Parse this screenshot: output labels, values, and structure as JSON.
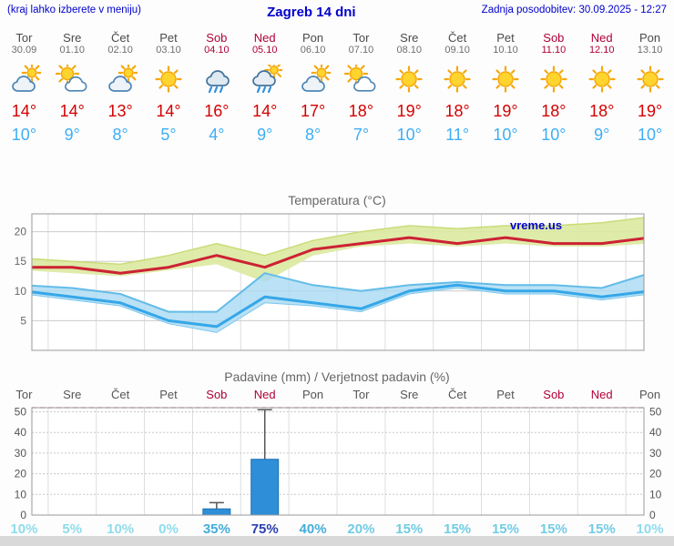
{
  "header": {
    "left_note": "(kraj lahko izberete v meniju)",
    "title": "Zagreb 14 dni",
    "updated": "Zadnja posodobitev: 30.09.2025 - 12:27"
  },
  "colors": {
    "accent_blue": "#0000cc",
    "tmax_red": "#d40000",
    "tmin_blue": "#3daef5",
    "weekend_red": "#b10036",
    "bar_blue": "#2e8fd8"
  },
  "days": [
    {
      "name": "Tor",
      "date": "30.09",
      "weekend": false,
      "icon": "mostly-cloudy",
      "tmax": "14°",
      "tmin": "10°",
      "precip_prob": "10%"
    },
    {
      "name": "Sre",
      "date": "01.10",
      "weekend": false,
      "icon": "partly-cloudy",
      "tmax": "14°",
      "tmin": "9°",
      "precip_prob": "5%"
    },
    {
      "name": "Čet",
      "date": "02.10",
      "weekend": false,
      "icon": "mostly-cloudy",
      "tmax": "13°",
      "tmin": "8°",
      "precip_prob": "10%"
    },
    {
      "name": "Pet",
      "date": "03.10",
      "weekend": false,
      "icon": "sunny",
      "tmax": "14°",
      "tmin": "5°",
      "precip_prob": "0%"
    },
    {
      "name": "Sob",
      "date": "04.10",
      "weekend": true,
      "icon": "rain",
      "tmax": "16°",
      "tmin": "4°",
      "precip_prob": "35%"
    },
    {
      "name": "Ned",
      "date": "05.10",
      "weekend": true,
      "icon": "sun-rain",
      "tmax": "14°",
      "tmin": "9°",
      "precip_prob": "75%"
    },
    {
      "name": "Pon",
      "date": "06.10",
      "weekend": false,
      "icon": "mostly-cloudy",
      "tmax": "17°",
      "tmin": "8°",
      "precip_prob": "40%"
    },
    {
      "name": "Tor",
      "date": "07.10",
      "weekend": false,
      "icon": "partly-cloudy",
      "tmax": "18°",
      "tmin": "7°",
      "precip_prob": "20%"
    },
    {
      "name": "Sre",
      "date": "08.10",
      "weekend": false,
      "icon": "sunny",
      "tmax": "19°",
      "tmin": "10°",
      "precip_prob": "15%"
    },
    {
      "name": "Čet",
      "date": "09.10",
      "weekend": false,
      "icon": "sunny",
      "tmax": "18°",
      "tmin": "11°",
      "precip_prob": "15%"
    },
    {
      "name": "Pet",
      "date": "10.10",
      "weekend": false,
      "icon": "sunny",
      "tmax": "19°",
      "tmin": "10°",
      "precip_prob": "15%"
    },
    {
      "name": "Sob",
      "date": "11.10",
      "weekend": true,
      "icon": "sunny",
      "tmax": "18°",
      "tmin": "10°",
      "precip_prob": "15%"
    },
    {
      "name": "Ned",
      "date": "12.10",
      "weekend": true,
      "icon": "sunny",
      "tmax": "18°",
      "tmin": "9°",
      "precip_prob": "15%"
    },
    {
      "name": "Pon",
      "date": "13.10",
      "weekend": false,
      "icon": "sunny",
      "tmax": "19°",
      "tmin": "10°",
      "precip_prob": "10%"
    }
  ],
  "chart_data": [
    {
      "type": "line",
      "title": "Temperatura (°C)",
      "watermark": "vreme.us",
      "categories": [
        "Tor",
        "Sre",
        "Čet",
        "Pet",
        "Sob",
        "Ned",
        "Pon",
        "Tor",
        "Sre",
        "Čet",
        "Pet",
        "Sob",
        "Ned",
        "Pon"
      ],
      "ylim": [
        0,
        23
      ],
      "yticks": [
        5,
        10,
        15,
        20
      ],
      "grid": true,
      "series": [
        {
          "name": "tmax",
          "color": "#cc2233",
          "values": [
            14,
            14,
            13,
            14,
            16,
            14,
            17,
            18,
            19,
            18,
            19,
            18,
            18,
            19
          ]
        },
        {
          "name": "tmax_hi",
          "color": "#dce9a0",
          "values": [
            15.5,
            15,
            14.5,
            16,
            18,
            16,
            18.5,
            20,
            21,
            20.5,
            21,
            21,
            21.5,
            22.5
          ]
        },
        {
          "name": "tmax_lo",
          "color": "#dce9a0",
          "values": [
            13.5,
            13,
            12.5,
            13.5,
            14.5,
            11.5,
            16,
            17.5,
            18,
            17.5,
            18,
            17.5,
            17.5,
            18
          ]
        },
        {
          "name": "tmin",
          "color": "#35a7e8",
          "values": [
            10,
            9,
            8,
            5,
            4,
            9,
            8,
            7,
            10,
            11,
            10,
            10,
            9,
            10
          ]
        },
        {
          "name": "tmin_hi",
          "color": "#a9d9f3",
          "values": [
            11,
            10.5,
            9.5,
            6.5,
            6.5,
            13,
            11,
            10,
            11,
            11.5,
            11,
            11,
            10.5,
            13
          ]
        },
        {
          "name": "tmin_lo",
          "color": "#a9d9f3",
          "values": [
            9.5,
            8.5,
            7.5,
            4.5,
            3,
            8,
            7.5,
            6.5,
            9.5,
            10.5,
            9.5,
            9.5,
            8.5,
            9.5
          ]
        }
      ]
    },
    {
      "type": "bar",
      "title": "Padavine (mm) / Verjetnost padavin (%)",
      "categories": [
        "Tor",
        "Sre",
        "Čet",
        "Pet",
        "Sob",
        "Ned",
        "Pon",
        "Tor",
        "Sre",
        "Čet",
        "Pet",
        "Sob",
        "Ned",
        "Pon"
      ],
      "ylim": [
        0,
        52
      ],
      "yticks": [
        0,
        10,
        20,
        30,
        40,
        50
      ],
      "values": [
        0,
        0,
        0,
        0,
        3,
        27,
        0,
        0,
        0,
        0,
        0,
        0,
        0,
        0
      ],
      "whiskers": [
        0,
        0,
        0,
        0,
        6,
        51,
        0,
        0,
        0,
        0,
        0,
        0,
        0,
        0
      ],
      "probabilities": [
        "10%",
        "5%",
        "10%",
        "0%",
        "35%",
        "75%",
        "40%",
        "20%",
        "15%",
        "15%",
        "15%",
        "15%",
        "15%",
        "10%"
      ],
      "bar_color": "#2e8fd8"
    }
  ]
}
